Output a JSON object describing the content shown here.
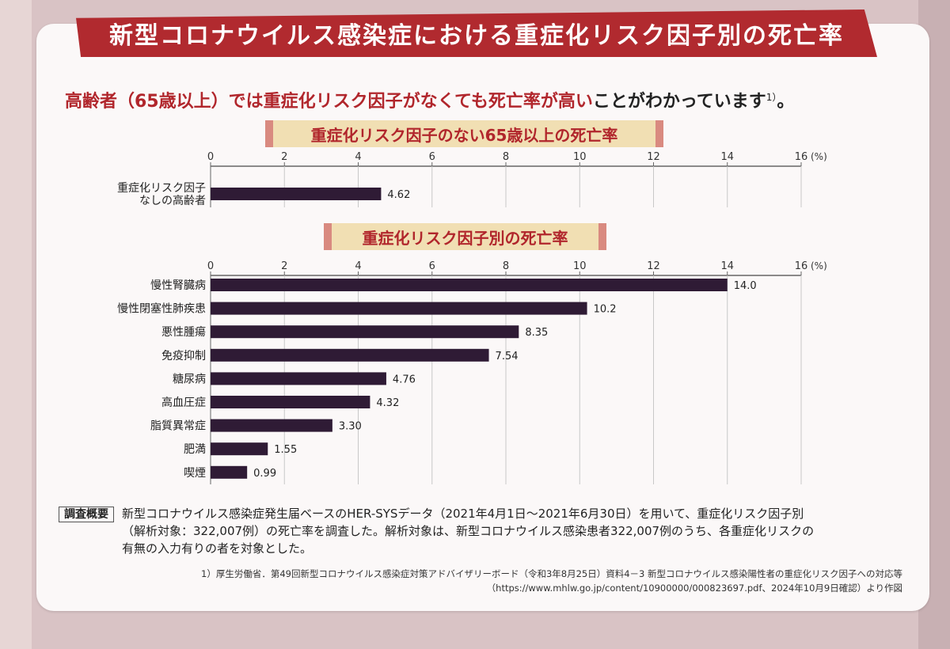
{
  "title": "新型コロナウイルス感染症における重症化リスク因子別の死亡率",
  "subtitle": {
    "highlight": "高齢者（65歳以上）では重症化リスク因子がなくても死亡率が高い",
    "rest": "ことがわかっています",
    "ref": "1）",
    "end": "。"
  },
  "colors": {
    "bar": "#2f1b35",
    "banner": "#b12a2f",
    "label_bg": "#f1dfb3",
    "accent": "#b1262c"
  },
  "chart_data": [
    {
      "type": "bar",
      "orientation": "horizontal",
      "title": "重症化リスク因子のない65歳以上の死亡率",
      "unit": "(%)",
      "xlim": [
        0,
        16
      ],
      "ticks": [
        0,
        2,
        4,
        6,
        8,
        10,
        12,
        14,
        16
      ],
      "categories": [
        [
          "重症化リスク因子",
          "なしの高齢者"
        ]
      ],
      "values": [
        4.62
      ],
      "value_labels": [
        "4.62"
      ]
    },
    {
      "type": "bar",
      "orientation": "horizontal",
      "title": "重症化リスク因子別の死亡率",
      "unit": "(%)",
      "xlim": [
        0,
        16
      ],
      "ticks": [
        0,
        2,
        4,
        6,
        8,
        10,
        12,
        14,
        16
      ],
      "categories": [
        [
          "慢性腎臓病"
        ],
        [
          "慢性閉塞性肺疾患"
        ],
        [
          "悪性腫瘍"
        ],
        [
          "免疫抑制"
        ],
        [
          "糖尿病"
        ],
        [
          "高血圧症"
        ],
        [
          "脂質異常症"
        ],
        [
          "肥満"
        ],
        [
          "喫煙"
        ]
      ],
      "values": [
        14.0,
        10.2,
        8.35,
        7.54,
        4.76,
        4.32,
        3.3,
        1.55,
        0.99
      ],
      "value_labels": [
        "14.0",
        "10.2",
        "8.35",
        "7.54",
        "4.76",
        "4.32",
        "3.30",
        "1.55",
        "0.99"
      ]
    }
  ],
  "survey": {
    "tag": "調査概要",
    "line1": "新型コロナウイルス感染症発生届ベースのHER-SYSデータ（2021年4月1日～2021年6月30日）を用いて、重症化リスク因子別",
    "line2": "（解析対象：322,007例）の死亡率を調査した。解析対象は、新型コロナウイルス感染患者322,007例のうち、各重症化リスクの",
    "line3": "有無の入力有りの者を対象とした。"
  },
  "footnote": {
    "line1": "1）厚生労働省．第49回新型コロナウイルス感染症対策アドバイザリーボード（令和3年8月25日）資料4－3 新型コロナウイルス感染陽性者の重症化リスク因子への対応等",
    "line2": "（https://www.mhlw.go.jp/content/10900000/000823697.pdf、2024年10月9日確認）より作図"
  }
}
